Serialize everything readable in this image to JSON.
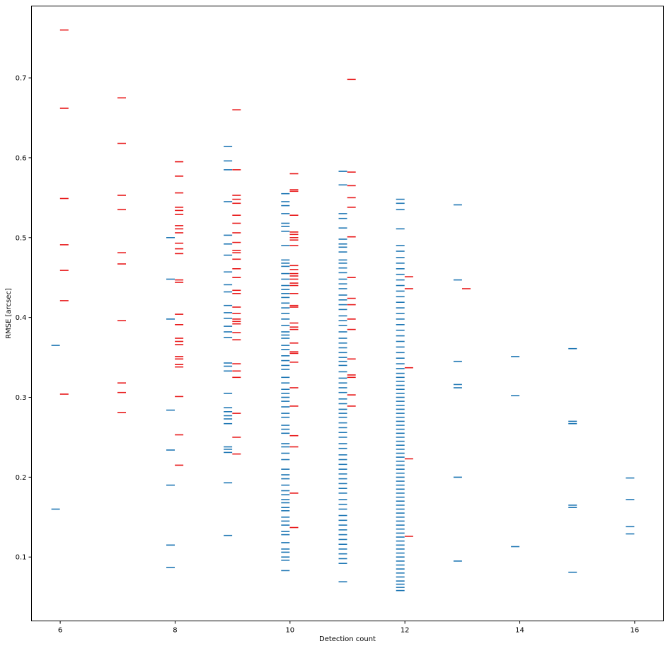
{
  "chart_data": {
    "type": "scatter",
    "title": "",
    "xlabel": "Detection count",
    "ylabel": "RMSE [arcsec]",
    "xlim": [
      5.5,
      16.5
    ],
    "ylim": [
      0.02,
      0.79
    ],
    "xticks": [
      6,
      8,
      10,
      12,
      14,
      16
    ],
    "yticks": [
      0.1,
      0.2,
      0.3,
      0.4,
      0.5,
      0.6,
      0.7
    ],
    "grid": false,
    "legend": "none",
    "marker": "horizontal-line",
    "series": [
      {
        "color": "#1f77b4",
        "x_offset": -0.08,
        "points": [
          {
            "x": 6,
            "y": [
              0.365,
              0.16
            ]
          },
          {
            "x": 8,
            "y": [
              0.5,
              0.448,
              0.398,
              0.284,
              0.234,
              0.19,
              0.115,
              0.087
            ]
          },
          {
            "x": 9,
            "y": [
              0.614,
              0.596,
              0.585,
              0.545,
              0.503,
              0.492,
              0.478,
              0.457,
              0.441,
              0.432,
              0.415,
              0.406,
              0.399,
              0.389,
              0.382,
              0.375,
              0.343,
              0.339,
              0.333,
              0.305,
              0.287,
              0.282,
              0.277,
              0.273,
              0.267,
              0.238,
              0.235,
              0.231,
              0.193,
              0.127
            ]
          },
          {
            "x": 10,
            "y": [
              0.555,
              0.545,
              0.54,
              0.53,
              0.518,
              0.514,
              0.508,
              0.49,
              0.472,
              0.468,
              0.464,
              0.455,
              0.448,
              0.44,
              0.435,
              0.43,
              0.425,
              0.418,
              0.412,
              0.405,
              0.398,
              0.39,
              0.382,
              0.378,
              0.374,
              0.365,
              0.36,
              0.352,
              0.346,
              0.34,
              0.335,
              0.325,
              0.318,
              0.31,
              0.305,
              0.3,
              0.295,
              0.288,
              0.28,
              0.275,
              0.265,
              0.26,
              0.255,
              0.242,
              0.238,
              0.23,
              0.222,
              0.21,
              0.203,
              0.198,
              0.19,
              0.183,
              0.178,
              0.172,
              0.168,
              0.162,
              0.158,
              0.15,
              0.145,
              0.14,
              0.132,
              0.128,
              0.118,
              0.11,
              0.106,
              0.1,
              0.096,
              0.083
            ]
          },
          {
            "x": 11,
            "y": [
              0.583,
              0.566,
              0.53,
              0.524,
              0.512,
              0.498,
              0.492,
              0.488,
              0.482,
              0.472,
              0.468,
              0.462,
              0.456,
              0.448,
              0.442,
              0.436,
              0.428,
              0.422,
              0.416,
              0.41,
              0.402,
              0.396,
              0.39,
              0.382,
              0.374,
              0.368,
              0.362,
              0.356,
              0.35,
              0.345,
              0.34,
              0.332,
              0.324,
              0.318,
              0.312,
              0.306,
              0.298,
              0.292,
              0.285,
              0.28,
              0.275,
              0.268,
              0.262,
              0.256,
              0.25,
              0.242,
              0.236,
              0.228,
              0.222,
              0.216,
              0.21,
              0.204,
              0.198,
              0.192,
              0.186,
              0.18,
              0.172,
              0.166,
              0.16,
              0.152,
              0.146,
              0.14,
              0.134,
              0.128,
              0.122,
              0.116,
              0.11,
              0.104,
              0.098,
              0.092,
              0.069
            ]
          },
          {
            "x": 12,
            "y": [
              0.548,
              0.543,
              0.535,
              0.511,
              0.49,
              0.483,
              0.475,
              0.468,
              0.461,
              0.454,
              0.447,
              0.44,
              0.433,
              0.426,
              0.419,
              0.412,
              0.405,
              0.398,
              0.391,
              0.384,
              0.377,
              0.37,
              0.363,
              0.356,
              0.349,
              0.342,
              0.336,
              0.33,
              0.325,
              0.32,
              0.315,
              0.31,
              0.305,
              0.3,
              0.295,
              0.29,
              0.285,
              0.28,
              0.275,
              0.27,
              0.265,
              0.26,
              0.255,
              0.25,
              0.245,
              0.24,
              0.235,
              0.23,
              0.225,
              0.22,
              0.215,
              0.21,
              0.205,
              0.2,
              0.195,
              0.19,
              0.185,
              0.18,
              0.175,
              0.17,
              0.165,
              0.16,
              0.155,
              0.15,
              0.145,
              0.14,
              0.135,
              0.13,
              0.125,
              0.12,
              0.115,
              0.11,
              0.105,
              0.1,
              0.095,
              0.09,
              0.085,
              0.08,
              0.075,
              0.07,
              0.066,
              0.062,
              0.058
            ]
          },
          {
            "x": 13,
            "y": [
              0.541,
              0.447,
              0.345,
              0.316,
              0.312,
              0.2,
              0.095
            ]
          },
          {
            "x": 14,
            "y": [
              0.351,
              0.302,
              0.113
            ]
          },
          {
            "x": 15,
            "y": [
              0.361,
              0.27,
              0.267,
              0.165,
              0.162,
              0.081
            ]
          },
          {
            "x": 16,
            "y": [
              0.199,
              0.172,
              0.138,
              0.129
            ]
          }
        ]
      },
      {
        "color": "#e8191a",
        "x_offset": 0.07,
        "points": [
          {
            "x": 6,
            "y": [
              0.76,
              0.662,
              0.549,
              0.491,
              0.459,
              0.421,
              0.304
            ]
          },
          {
            "x": 7,
            "y": [
              0.675,
              0.618,
              0.553,
              0.535,
              0.481,
              0.467,
              0.396,
              0.318,
              0.306,
              0.281
            ]
          },
          {
            "x": 8,
            "y": [
              0.595,
              0.577,
              0.556,
              0.538,
              0.534,
              0.529,
              0.515,
              0.511,
              0.506,
              0.493,
              0.486,
              0.48,
              0.447,
              0.444,
              0.404,
              0.391,
              0.374,
              0.37,
              0.366,
              0.351,
              0.348,
              0.341,
              0.338,
              0.301,
              0.253,
              0.215
            ]
          },
          {
            "x": 9,
            "y": [
              0.66,
              0.585,
              0.553,
              0.548,
              0.543,
              0.528,
              0.518,
              0.506,
              0.494,
              0.484,
              0.481,
              0.473,
              0.461,
              0.45,
              0.434,
              0.43,
              0.413,
              0.405,
              0.398,
              0.395,
              0.392,
              0.381,
              0.372,
              0.342,
              0.333,
              0.325,
              0.28,
              0.25,
              0.229
            ]
          },
          {
            "x": 10,
            "y": [
              0.58,
              0.56,
              0.558,
              0.528,
              0.507,
              0.504,
              0.5,
              0.497,
              0.49,
              0.465,
              0.46,
              0.455,
              0.452,
              0.448,
              0.443,
              0.44,
              0.43,
              0.415,
              0.413,
              0.393,
              0.388,
              0.385,
              0.368,
              0.357,
              0.355,
              0.344,
              0.312,
              0.289,
              0.252,
              0.238,
              0.18,
              0.137
            ]
          },
          {
            "x": 11,
            "y": [
              0.698,
              0.582,
              0.565,
              0.55,
              0.538,
              0.501,
              0.45,
              0.424,
              0.416,
              0.398,
              0.385,
              0.348,
              0.328,
              0.325,
              0.303,
              0.289
            ]
          },
          {
            "x": 12,
            "y": [
              0.451,
              0.436,
              0.337,
              0.223,
              0.126
            ]
          },
          {
            "x": 13,
            "y": [
              0.436
            ]
          }
        ]
      }
    ]
  }
}
